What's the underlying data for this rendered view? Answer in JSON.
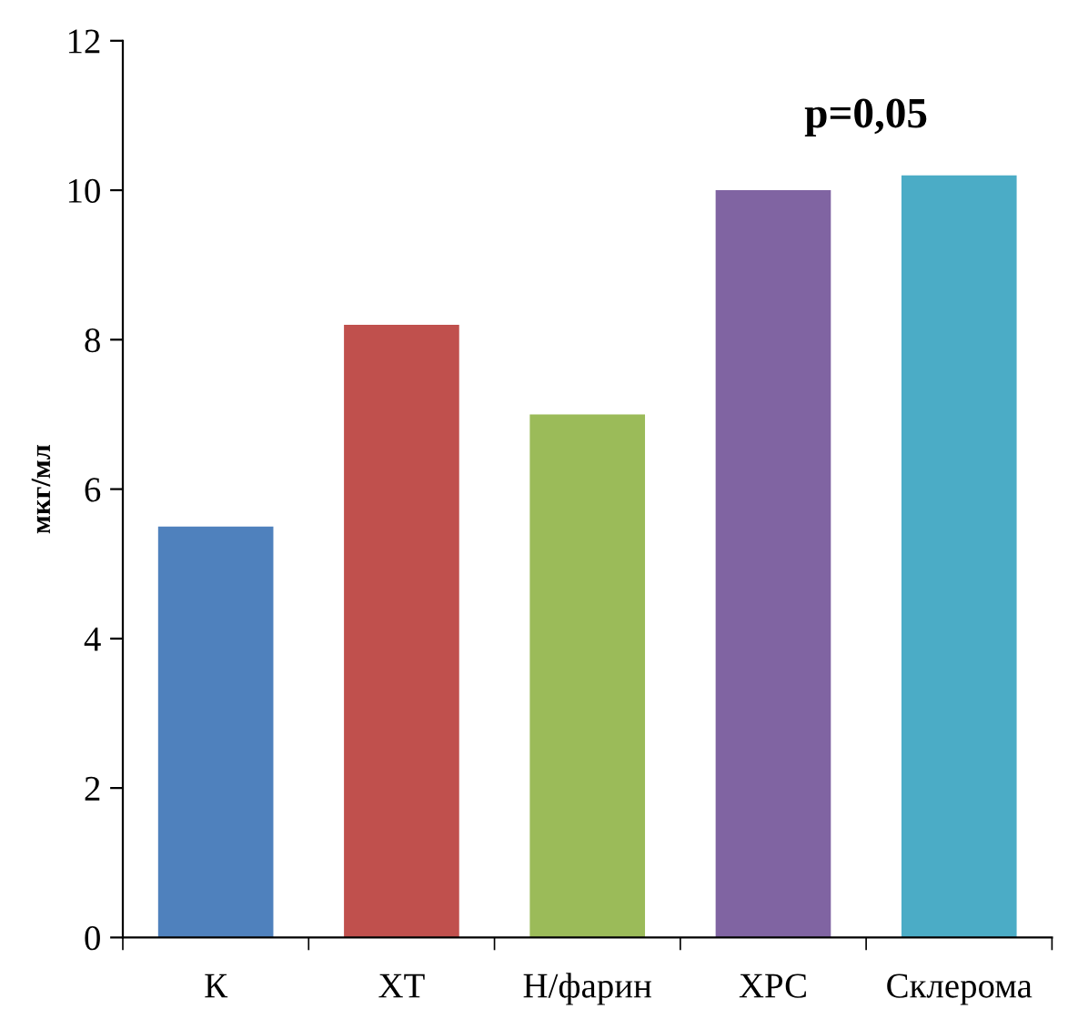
{
  "chart_data": {
    "type": "bar",
    "categories": [
      "К",
      "ХТ",
      "Н/фарин",
      "ХРС",
      "Склерома"
    ],
    "values": [
      5.5,
      8.2,
      7.0,
      10.0,
      10.2
    ],
    "colors": [
      "#4f81bd",
      "#c0504d",
      "#9bbb59",
      "#8064a2",
      "#4bacc6"
    ],
    "ylabel": "мкг/мл",
    "ylim": [
      0,
      12
    ],
    "yticks": [
      0,
      2,
      4,
      6,
      8,
      10,
      12
    ],
    "annotations": [
      "p=0,05"
    ]
  }
}
